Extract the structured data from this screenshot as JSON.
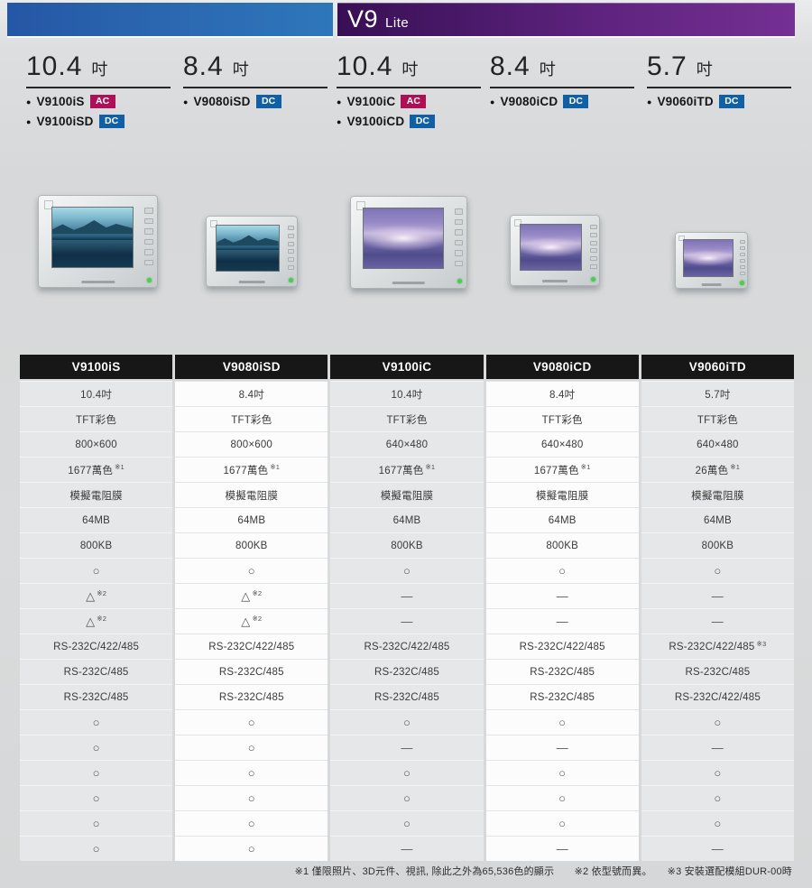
{
  "header": {
    "title_main": "V9",
    "title_sub": "Lite"
  },
  "colors": {
    "band_blue": "#2b66b0",
    "band_purple_dark": "#380f54",
    "band_purple_light": "#743092",
    "badge_ac": "#ae1058",
    "badge_dc": "#1160a6",
    "table_header_bg": "#171717"
  },
  "products": [
    {
      "size": "10.4",
      "unit": "吋",
      "screen": "lake",
      "models": [
        {
          "name": "V9100iS",
          "badge": "AC"
        },
        {
          "name": "V9100iSD",
          "badge": "DC"
        }
      ]
    },
    {
      "size": "8.4",
      "unit": "吋",
      "screen": "lake",
      "models": [
        {
          "name": "V9080iSD",
          "badge": "DC"
        }
      ]
    },
    {
      "size": "10.4",
      "unit": "吋",
      "screen": "sky",
      "models": [
        {
          "name": "V9100iC",
          "badge": "AC"
        },
        {
          "name": "V9100iCD",
          "badge": "DC"
        }
      ]
    },
    {
      "size": "8.4",
      "unit": "吋",
      "screen": "sky",
      "models": [
        {
          "name": "V9080iCD",
          "badge": "DC"
        }
      ]
    },
    {
      "size": "5.7",
      "unit": "吋",
      "screen": "sky",
      "models": [
        {
          "name": "V9060iTD",
          "badge": "DC"
        }
      ]
    }
  ],
  "spec_table": {
    "columns": [
      "V9100iS",
      "V9080iSD",
      "V9100iC",
      "V9080iCD",
      "V9060iTD"
    ],
    "rows": [
      [
        "10.4吋",
        "8.4吋",
        "10.4吋",
        "8.4吋",
        "5.7吋"
      ],
      [
        "TFT彩色",
        "TFT彩色",
        "TFT彩色",
        "TFT彩色",
        "TFT彩色"
      ],
      [
        "800×600",
        "800×600",
        "640×480",
        "640×480",
        "640×480"
      ],
      [
        "1677萬色 ※1",
        "1677萬色 ※1",
        "1677萬色 ※1",
        "1677萬色 ※1",
        "26萬色 ※1"
      ],
      [
        "模擬電阻膜",
        "模擬電阻膜",
        "模擬電阻膜",
        "模擬電阻膜",
        "模擬電阻膜"
      ],
      [
        "64MB",
        "64MB",
        "64MB",
        "64MB",
        "64MB"
      ],
      [
        "800KB",
        "800KB",
        "800KB",
        "800KB",
        "800KB"
      ],
      [
        "○",
        "○",
        "○",
        "○",
        "○"
      ],
      [
        "△ ※2",
        "△ ※2",
        "—",
        "—",
        "—"
      ],
      [
        "△ ※2",
        "△ ※2",
        "—",
        "—",
        "—"
      ],
      [
        "RS-232C/422/485",
        "RS-232C/422/485",
        "RS-232C/422/485",
        "RS-232C/422/485",
        "RS-232C/422/485 ※3"
      ],
      [
        "RS-232C/485",
        "RS-232C/485",
        "RS-232C/485",
        "RS-232C/485",
        "RS-232C/485"
      ],
      [
        "RS-232C/485",
        "RS-232C/485",
        "RS-232C/485",
        "RS-232C/485",
        "RS-232C/422/485"
      ],
      [
        "○",
        "○",
        "○",
        "○",
        "○"
      ],
      [
        "○",
        "○",
        "—",
        "—",
        "—"
      ],
      [
        "○",
        "○",
        "○",
        "○",
        "○"
      ],
      [
        "○",
        "○",
        "○",
        "○",
        "○"
      ],
      [
        "○",
        "○",
        "○",
        "○",
        "○"
      ],
      [
        "○",
        "○",
        "—",
        "—",
        "—"
      ]
    ]
  },
  "footnote": "※1 僅限照片、3D元件、視訊, 除此之外為65,536色的顯示　　※2 依型號而異。　　※3 安裝選配模組DUR-00時"
}
